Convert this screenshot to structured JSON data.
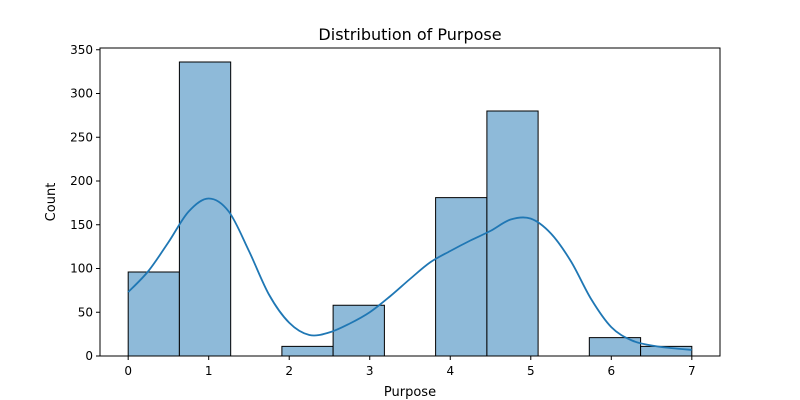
{
  "chart_data": {
    "type": "bar",
    "title": "Distribution of Purpose",
    "xlabel": "Purpose",
    "ylabel": "Count",
    "bins": [
      {
        "start": 0.0,
        "end": 0.636,
        "count": 96
      },
      {
        "start": 0.636,
        "end": 1.273,
        "count": 336
      },
      {
        "start": 1.909,
        "end": 2.545,
        "count": 11
      },
      {
        "start": 2.545,
        "end": 3.182,
        "count": 58
      },
      {
        "start": 3.818,
        "end": 4.455,
        "count": 181
      },
      {
        "start": 4.455,
        "end": 5.091,
        "count": 280
      },
      {
        "start": 5.727,
        "end": 6.364,
        "count": 21
      },
      {
        "start": 6.364,
        "end": 7.0,
        "count": 11
      }
    ],
    "kde": {
      "x": [
        0,
        0.25,
        0.5,
        0.75,
        1.0,
        1.25,
        1.5,
        1.75,
        2.0,
        2.25,
        2.5,
        2.75,
        3.0,
        3.25,
        3.5,
        3.75,
        4.0,
        4.25,
        4.5,
        4.75,
        5.0,
        5.25,
        5.5,
        5.75,
        6.0,
        6.25,
        6.5,
        6.75,
        7.0
      ],
      "y": [
        73,
        97,
        130,
        165,
        180,
        165,
        120,
        70,
        38,
        24,
        27,
        37,
        50,
        68,
        88,
        107,
        120,
        132,
        143,
        156,
        157,
        140,
        108,
        65,
        33,
        18,
        12,
        9,
        7
      ]
    },
    "xlim": [
      -0.35,
      7.35
    ],
    "ylim": [
      0,
      352
    ],
    "xticks": [
      "0",
      "1",
      "2",
      "3",
      "4",
      "5",
      "6",
      "7"
    ],
    "yticks": [
      "0",
      "50",
      "100",
      "150",
      "200",
      "250",
      "300",
      "350"
    ],
    "grid": false,
    "colors": {
      "bar_fill": "#8ebad9",
      "bar_edge": "#000000",
      "kde_line": "#1f77b4"
    }
  }
}
